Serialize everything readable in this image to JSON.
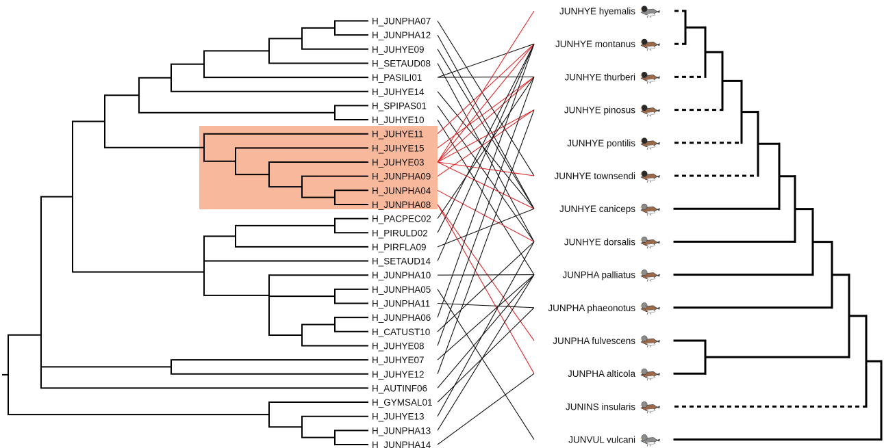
{
  "colors": {
    "highlight": "#f7b89b",
    "highlight_link": "#e0262a",
    "link": "#111111",
    "branch": "#000000",
    "bird_head_dark": "#2b2b2b",
    "bird_back_brown": "#9a6a4a",
    "bird_belly": "#f2f2f2",
    "bird_body_gray": "#8c8c8c"
  },
  "haplotypes": [
    {
      "id": "h1",
      "label": "H_JUNPHA07",
      "highlight": false
    },
    {
      "id": "h2",
      "label": "H_JUNPHA12",
      "highlight": false
    },
    {
      "id": "h3",
      "label": "H_JUHYE09",
      "highlight": false
    },
    {
      "id": "h4",
      "label": "H_SETAUD08",
      "highlight": false
    },
    {
      "id": "h5",
      "label": "H_PASILI01",
      "highlight": false
    },
    {
      "id": "h6",
      "label": "H_JUHYE14",
      "highlight": false
    },
    {
      "id": "h7",
      "label": "H_SPIPAS01",
      "highlight": false
    },
    {
      "id": "h8",
      "label": "H_JUHYE10",
      "highlight": false
    },
    {
      "id": "h9",
      "label": "H_JUHYE11",
      "highlight": true
    },
    {
      "id": "h10",
      "label": "H_JUHYE15",
      "highlight": true
    },
    {
      "id": "h11",
      "label": "H_JUHYE03",
      "highlight": true
    },
    {
      "id": "h12",
      "label": "H_JUNPHA09",
      "highlight": true
    },
    {
      "id": "h13",
      "label": "H_JUNPHA04",
      "highlight": true
    },
    {
      "id": "h14",
      "label": "H_JUNPHA08",
      "highlight": true
    },
    {
      "id": "h15",
      "label": "H_PACPEC02",
      "highlight": false
    },
    {
      "id": "h16",
      "label": "H_PIRULD02",
      "highlight": false
    },
    {
      "id": "h17",
      "label": "H_PIRFLA09",
      "highlight": false
    },
    {
      "id": "h18",
      "label": "H_SETAUD14",
      "highlight": false
    },
    {
      "id": "h19",
      "label": "H_JUNPHA10",
      "highlight": false
    },
    {
      "id": "h20",
      "label": "H_JUNPHA05",
      "highlight": false
    },
    {
      "id": "h21",
      "label": "H_JUNPHA11",
      "highlight": false
    },
    {
      "id": "h22",
      "label": "H_JUNPHA06",
      "highlight": false
    },
    {
      "id": "h23",
      "label": "H_CATUST10",
      "highlight": false
    },
    {
      "id": "h24",
      "label": "H_JUHYE08",
      "highlight": false
    },
    {
      "id": "h25",
      "label": "H_JUHYE07",
      "highlight": false
    },
    {
      "id": "h26",
      "label": "H_JUHYE12",
      "highlight": false
    },
    {
      "id": "h27",
      "label": "H_AUTINF06",
      "highlight": false
    },
    {
      "id": "h28",
      "label": "H_GYMSAL01",
      "highlight": false
    },
    {
      "id": "h29",
      "label": "H_JUHYE13",
      "highlight": false
    },
    {
      "id": "h30",
      "label": "H_JUNPHA13",
      "highlight": false
    },
    {
      "id": "h31",
      "label": "H_JUNPHA14",
      "highlight": false
    }
  ],
  "hosts": [
    {
      "id": "s1",
      "label": "JUNHYE hyemalis",
      "bird": "dark-hooded-gray"
    },
    {
      "id": "s2",
      "label": "JUNHYE montanus",
      "bird": "dark-hooded-brown"
    },
    {
      "id": "s3",
      "label": "JUNHYE thurberi",
      "bird": "dark-hooded-brown"
    },
    {
      "id": "s4",
      "label": "JUNHYE pinosus",
      "bird": "dark-hooded-brown"
    },
    {
      "id": "s5",
      "label": "JUNHYE pontilis",
      "bird": "dark-hooded-brown"
    },
    {
      "id": "s6",
      "label": "JUNHYE townsendi",
      "bird": "dark-hooded-brown"
    },
    {
      "id": "s7",
      "label": "JUNHYE caniceps",
      "bird": "gray-red-back"
    },
    {
      "id": "s8",
      "label": "JUNHYE dorsalis",
      "bird": "gray-red-back"
    },
    {
      "id": "s9",
      "label": "JUNPHA palliatus",
      "bird": "gray-red-back"
    },
    {
      "id": "s10",
      "label": "JUNPHA phaeonotus",
      "bird": "gray-red-back"
    },
    {
      "id": "s11",
      "label": "JUNPHA fulvescens",
      "bird": "gray-brown"
    },
    {
      "id": "s12",
      "label": "JUNPHA alticola",
      "bird": "gray-red-back"
    },
    {
      "id": "s13",
      "label": "JUNINS insularis",
      "bird": "gray-red-back"
    },
    {
      "id": "s14",
      "label": "JUNVUL vulcani",
      "bird": "gray-plain"
    }
  ],
  "parasite_tree": [
    [
      "h1",
      "h2"
    ],
    [
      "n_12",
      "h3"
    ],
    [
      "n_123",
      "h4"
    ],
    [
      "n_1234",
      "h5"
    ],
    [
      "n_12345",
      "h6"
    ],
    [
      "h7",
      "h8"
    ],
    [
      "n_A",
      "n_78"
    ],
    [
      "h13",
      "h14"
    ],
    [
      "h12",
      "n_1314"
    ],
    [
      "h11",
      "n_1214"
    ],
    [
      "h10",
      "n_1114"
    ],
    [
      "h9",
      "n_1014"
    ],
    [
      "n_B",
      "n_914"
    ],
    [
      "h15",
      "h16"
    ],
    [
      "n_1516",
      "h17"
    ],
    [
      "n_1517",
      "h18"
    ],
    [
      "h22",
      "h23"
    ],
    [
      "h20",
      "h21"
    ],
    [
      "n_2021",
      "n_2223"
    ],
    [
      "n_2023",
      "h24"
    ],
    [
      "h19",
      "n_2024"
    ],
    [
      "n_1518",
      "n_1924"
    ],
    [
      "n_C",
      "n_D"
    ],
    [
      "h25",
      "h26"
    ],
    [
      "n_E",
      "n_2526"
    ],
    [
      "n_F",
      "h27"
    ],
    [
      "h30",
      "h31"
    ],
    [
      "h29",
      "n_3031"
    ],
    [
      "h28",
      "n_2931"
    ],
    [
      "n_G",
      "n_H"
    ]
  ],
  "host_tree": [
    [
      "s1",
      "s2"
    ],
    [
      "n_s12",
      "s3"
    ],
    [
      "n_s13",
      "s4"
    ],
    [
      "n_s14",
      "s5"
    ],
    [
      "n_s15",
      "s6"
    ],
    [
      "n_s16",
      "s7"
    ],
    [
      "n_s17",
      "s8"
    ],
    [
      "n_s18",
      "s9"
    ],
    [
      "n_s19",
      "s10"
    ],
    [
      "s11",
      "s12"
    ],
    [
      "n_s110",
      "n_s1112"
    ],
    [
      "n_s112",
      "s13"
    ],
    [
      "n_s113",
      "s14"
    ]
  ],
  "associations": [
    [
      "h1",
      "s6"
    ],
    [
      "h2",
      "s7"
    ],
    [
      "h3",
      "s7"
    ],
    [
      "h4",
      "s8"
    ],
    [
      "h5",
      "s2"
    ],
    [
      "h5",
      "s3"
    ],
    [
      "h6",
      "s7"
    ],
    [
      "h7",
      "s8"
    ],
    [
      "h8",
      "s9"
    ],
    [
      "h9",
      "s2"
    ],
    [
      "h10",
      "s3"
    ],
    [
      "h11",
      "s1"
    ],
    [
      "h11",
      "s2"
    ],
    [
      "h11",
      "s3"
    ],
    [
      "h11",
      "s4"
    ],
    [
      "h11",
      "s6"
    ],
    [
      "h11",
      "s7"
    ],
    [
      "h12",
      "s4"
    ],
    [
      "h13",
      "s8"
    ],
    [
      "h14",
      "s11"
    ],
    [
      "h14",
      "s12"
    ],
    [
      "h15",
      "s3"
    ],
    [
      "h16",
      "s2"
    ],
    [
      "h17",
      "s7"
    ],
    [
      "h18",
      "s2"
    ],
    [
      "h19",
      "s9"
    ],
    [
      "h20",
      "s14"
    ],
    [
      "h21",
      "s10"
    ],
    [
      "h22",
      "s2"
    ],
    [
      "h23",
      "s8"
    ],
    [
      "h24",
      "s3"
    ],
    [
      "h25",
      "s9"
    ],
    [
      "h26",
      "s4"
    ],
    [
      "h27",
      "s9"
    ],
    [
      "h28",
      "s10"
    ],
    [
      "h29",
      "s8"
    ],
    [
      "h30",
      "s9"
    ],
    [
      "h31",
      "s12"
    ]
  ]
}
